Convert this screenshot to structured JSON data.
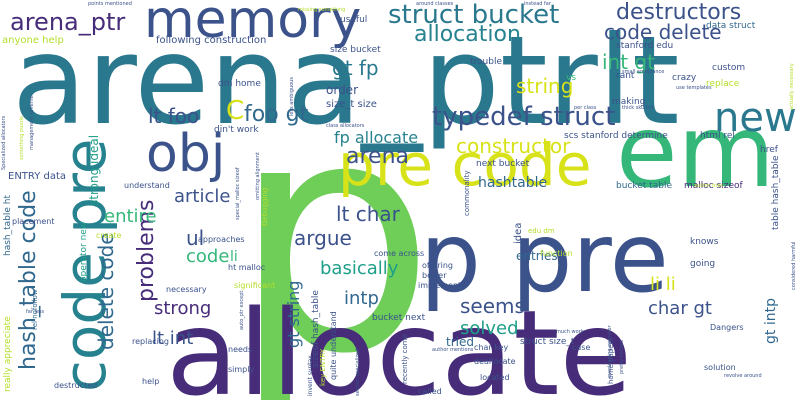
{
  "palette": {
    "dark_purple": "#472c7a",
    "indigo": "#3b528b",
    "blue": "#31688e",
    "teal": "#26828e",
    "green_teal": "#1f9e89",
    "green": "#35b779",
    "light_green": "#6ece58",
    "lime": "#b5de2b",
    "yellow": "#d8e219",
    "deep_purple": "#440154"
  },
  "words": [
    {
      "text": "p",
      "color": "#6ece58",
      "weight": 100
    },
    {
      "text": "arena_ptrlt",
      "color": "#2a788e",
      "weight": 90
    },
    {
      "text": "allocate",
      "color": "#472c7a",
      "weight": 88
    },
    {
      "text": "p pre",
      "color": "#3b528b",
      "weight": 80
    },
    {
      "text": "em",
      "color": "#35b779",
      "weight": 75
    },
    {
      "text": "code pre",
      "color": "#26828e",
      "weight": 72
    },
    {
      "text": "pre code",
      "color": "#d8e219",
      "weight": 70
    },
    {
      "text": "memory",
      "color": "#3b528b",
      "weight": 65
    },
    {
      "text": "obj",
      "color": "#3b528b",
      "weight": 60
    },
    {
      "text": "new",
      "color": "#2a788e",
      "weight": 50
    },
    {
      "text": "hash_table code",
      "color": "#31688e",
      "weight": 48
    },
    {
      "text": "struct bucket",
      "color": "#2a788e",
      "weight": 45
    },
    {
      "text": "typedef struct",
      "color": "#3b528b",
      "weight": 44
    },
    {
      "text": "arena_ptr",
      "color": "#472c7a",
      "weight": 40
    },
    {
      "text": "allocation",
      "color": "#26828e",
      "weight": 38
    },
    {
      "text": "code delete",
      "color": "#3b528b",
      "weight": 36
    },
    {
      "text": "destructors",
      "color": "#3b528b",
      "weight": 35
    },
    {
      "text": "int gt",
      "color": "#35b779",
      "weight": 34
    },
    {
      "text": "gt fp",
      "color": "#2a788e",
      "weight": 33
    },
    {
      "text": "string",
      "color": "#d8e219",
      "weight": 33
    },
    {
      "text": "C",
      "color": "#d8e219",
      "weight": 32
    },
    {
      "text": "foo gt",
      "color": "#31688e",
      "weight": 32
    },
    {
      "text": "lt foo",
      "color": "#3b528b",
      "weight": 30
    },
    {
      "text": "arena",
      "color": "#3b528b",
      "weight": 30
    },
    {
      "text": "constructor",
      "color": "#d8e219",
      "weight": 30
    },
    {
      "text": "fp allocate",
      "color": "#26828e",
      "weight": 28
    },
    {
      "text": "argue",
      "color": "#3b528b",
      "weight": 27
    },
    {
      "text": "article",
      "color": "#3b528b",
      "weight": 26
    },
    {
      "text": "lt char",
      "color": "#3b528b",
      "weight": 26
    },
    {
      "text": "problems",
      "color": "#472c7a",
      "weight": 26
    },
    {
      "text": "delete code",
      "color": "#31688e",
      "weight": 25
    },
    {
      "text": "entire",
      "color": "#35b779",
      "weight": 24
    },
    {
      "text": "basically",
      "color": "#1f9e89",
      "weight": 24
    },
    {
      "text": "seems",
      "color": "#3b528b",
      "weight": 24
    },
    {
      "text": "li li",
      "color": "#d8e219",
      "weight": 23
    },
    {
      "text": "solved",
      "color": "#1f9e89",
      "weight": 22
    },
    {
      "text": "char gt",
      "color": "#3b528b",
      "weight": 22
    },
    {
      "text": "strong",
      "color": "#472c7a",
      "weight": 22
    },
    {
      "text": "lt int",
      "color": "#3b528b",
      "weight": 22
    },
    {
      "text": "code",
      "color": "#35b779",
      "weight": 20
    },
    {
      "text": "ul",
      "color": "#3b528b",
      "weight": 20
    },
    {
      "text": "intp",
      "color": "#31688e",
      "weight": 20
    },
    {
      "text": "gt string",
      "color": "#31688e",
      "weight": 18
    },
    {
      "text": "hashtable",
      "color": "#31688e",
      "weight": 16
    },
    {
      "text": "entries",
      "color": "#31688e",
      "weight": 14
    },
    {
      "text": "li",
      "color": "#35b779",
      "weight": 14
    },
    {
      "text": "order",
      "color": "#3b528b",
      "weight": 13
    },
    {
      "text": "strong ideal",
      "color": "#1f9e89",
      "weight": 13
    },
    {
      "text": "gt intp",
      "color": "#31688e",
      "weight": 13
    },
    {
      "text": "tried",
      "color": "#31688e",
      "weight": 12
    },
    {
      "text": "size_t size",
      "color": "#3b528b",
      "weight": 10
    },
    {
      "text": "anyone help",
      "color": "#b5de2b",
      "weight": 10
    },
    {
      "text": "following construction",
      "color": "#3b528b",
      "weight": 10
    },
    {
      "text": "ENTRY data",
      "color": "#3b528b",
      "weight": 10
    },
    {
      "text": "scs stanford determine",
      "color": "#3b528b",
      "weight": 9
    },
    {
      "text": "html rel",
      "color": "#3b528b",
      "weight": 9
    },
    {
      "text": "next bucket",
      "color": "#3b528b",
      "weight": 9
    },
    {
      "text": "bucket table",
      "color": "#31688e",
      "weight": 9
    },
    {
      "text": "malloc sizeof",
      "color": "#472c7a",
      "weight": 9
    },
    {
      "text": "table hash_table",
      "color": "#3b528b",
      "weight": 9
    },
    {
      "text": "din't work",
      "color": "#3b528b",
      "weight": 9
    },
    {
      "text": "dm home",
      "color": "#3b528b",
      "weight": 9
    },
    {
      "text": "making",
      "color": "#3b528b",
      "weight": 9
    },
    {
      "text": "replace",
      "color": "#b5de2b",
      "weight": 9
    },
    {
      "text": "custom",
      "color": "#3b528b",
      "weight": 9
    },
    {
      "text": "crazy",
      "color": "#3b528b",
      "weight": 9
    },
    {
      "text": "rant",
      "color": "#3b528b",
      "weight": 9
    },
    {
      "text": "vs",
      "color": "#35b779",
      "weight": 9
    },
    {
      "text": "trouble",
      "color": "#3b528b",
      "weight": 9
    },
    {
      "text": "size bucket",
      "color": "#3b528b",
      "weight": 9
    },
    {
      "text": "useful",
      "color": "#3b528b",
      "weight": 9
    },
    {
      "text": "data struct",
      "color": "#31688e",
      "weight": 9
    },
    {
      "text": "stanford edu",
      "color": "#3b528b",
      "weight": 9
    },
    {
      "text": "href",
      "color": "#3b528b",
      "weight": 9
    },
    {
      "text": "knows",
      "color": "#3b528b",
      "weight": 9
    },
    {
      "text": "going",
      "color": "#3b528b",
      "weight": 9
    },
    {
      "text": "idea",
      "color": "#3b528b",
      "weight": 9
    },
    {
      "text": "function",
      "color": "#b5de2b",
      "weight": 8
    },
    {
      "text": "offering",
      "color": "#3b528b",
      "weight": 8
    },
    {
      "text": "better",
      "color": "#3b528b",
      "weight": 8
    },
    {
      "text": "implement",
      "color": "#3b528b",
      "weight": 8
    },
    {
      "text": "struct size_t",
      "color": "#3b528b",
      "weight": 9
    },
    {
      "text": "bucket next",
      "color": "#3b528b",
      "weight": 9
    },
    {
      "text": "come across",
      "color": "#3b528b",
      "weight": 8
    },
    {
      "text": "edu dm",
      "color": "#b5de2b",
      "weight": 7
    },
    {
      "text": "ht malloc",
      "color": "#3b528b",
      "weight": 8
    },
    {
      "text": "approaches",
      "color": "#3b528b",
      "weight": 8
    },
    {
      "text": "understand",
      "color": "#3b528b",
      "weight": 8
    },
    {
      "text": "placement",
      "color": "#3b528b",
      "weight": 8
    },
    {
      "text": "create",
      "color": "#b5de2b",
      "weight": 8
    },
    {
      "text": "necessary",
      "color": "#3b528b",
      "weight": 8
    },
    {
      "text": "significant",
      "color": "#b5de2b",
      "weight": 8
    },
    {
      "text": "sizeof hash_table",
      "color": "#3b528b",
      "weight": 9
    },
    {
      "text": "quite understand",
      "color": "#3b528b",
      "weight": 8
    },
    {
      "text": "replacing",
      "color": "#3b528b",
      "weight": 8
    },
    {
      "text": "needs",
      "color": "#3b528b",
      "weight": 8
    },
    {
      "text": "simply",
      "color": "#3b528b",
      "weight": 8
    },
    {
      "text": "help",
      "color": "#3b528b",
      "weight": 8
    },
    {
      "text": "destructed",
      "color": "#3b528b",
      "weight": 8
    },
    {
      "text": "called",
      "color": "#3b528b",
      "weight": 8
    },
    {
      "text": "located",
      "color": "#3b528b",
      "weight": 8
    },
    {
      "text": "deallocate",
      "color": "#3b528b",
      "weight": 8
    },
    {
      "text": "char key",
      "color": "#3b528b",
      "weight": 8
    },
    {
      "text": "case",
      "color": "#3b528b",
      "weight": 8
    },
    {
      "text": "solution",
      "color": "#3b528b",
      "weight": 8
    },
    {
      "text": "Dangers",
      "color": "#3b528b",
      "weight": 8
    },
    {
      "text": "home papers",
      "color": "#3b528b",
      "weight": 7
    },
    {
      "text": "recently come",
      "color": "#3b528b",
      "weight": 7
    },
    {
      "text": "really appreciate",
      "color": "#b5de2b",
      "weight": 9
    },
    {
      "text": "hash_table ht",
      "color": "#31688e",
      "weight": 9
    },
    {
      "text": "operator new",
      "color": "#1f9e89",
      "weight": 9
    },
    {
      "text": "commonality",
      "color": "#3b528b",
      "weight": 7
    },
    {
      "text": "Debugging",
      "color": "#b5de2b",
      "weight": 7
    },
    {
      "text": "key ENTRY",
      "color": "#b5de2b",
      "weight": 7
    },
    {
      "text": "rel nofollow",
      "color": "#31688e",
      "weight": 7
    },
    {
      "text": "invent syntax",
      "color": "#3b528b",
      "weight": 6
    },
    {
      "text": "points mentioned",
      "color": "#3b528b",
      "weight": 5
    },
    {
      "text": "around classes",
      "color": "#3b528b",
      "weight": 5
    },
    {
      "text": "instead far",
      "color": "#3b528b",
      "weight": 5
    },
    {
      "text": "less ambiguous",
      "color": "#3b528b",
      "weight": 5
    },
    {
      "text": "small annoyance",
      "color": "#3b528b",
      "weight": 5
    },
    {
      "text": "use templates",
      "color": "#3b528b",
      "weight": 5
    },
    {
      "text": "per class",
      "color": "#3b528b",
      "weight": 5
    },
    {
      "text": "thick skulled",
      "color": "#3b528b",
      "weight": 5
    },
    {
      "text": "class allocators",
      "color": "#3b528b",
      "weight": 5
    },
    {
      "text": "author tries",
      "color": "#b5de2b",
      "weight": 5
    },
    {
      "text": "much work",
      "color": "#3b528b",
      "weight": 5
    },
    {
      "text": "author mentions",
      "color": "#3b528b",
      "weight": 5
    },
    {
      "text": "revolve around",
      "color": "#3b528b",
      "weight": 5
    },
    {
      "text": "pretty limited",
      "color": "#3b528b",
      "weight": 5
    },
    {
      "text": "overloading operator",
      "color": "#3b528b",
      "weight": 5
    },
    {
      "text": "section specialized",
      "color": "#3b528b",
      "weight": 5
    },
    {
      "text": "far less",
      "color": "#3b528b",
      "weight": 5
    },
    {
      "text": "omitting alignment",
      "color": "#3b528b",
      "weight": 5
    },
    {
      "text": "special_malloc sizeof",
      "color": "#3b528b",
      "weight": 5
    },
    {
      "text": "auto_ptr except",
      "color": "#3b528b",
      "weight": 5
    },
    {
      "text": "management scheme",
      "color": "#3b528b",
      "weight": 5
    },
    {
      "text": "Specialized allocators",
      "color": "#3b528b",
      "weight": 5
    },
    {
      "text": "something puzzle",
      "color": "#b5de2b",
      "weight": 5
    },
    {
      "text": "actually necessary",
      "color": "#b5de2b",
      "weight": 5
    },
    {
      "text": "considered harmful",
      "color": "#3b528b",
      "weight": 5
    },
    {
      "text": "missing something",
      "color": "#b5de2b",
      "weight": 5
    }
  ]
}
